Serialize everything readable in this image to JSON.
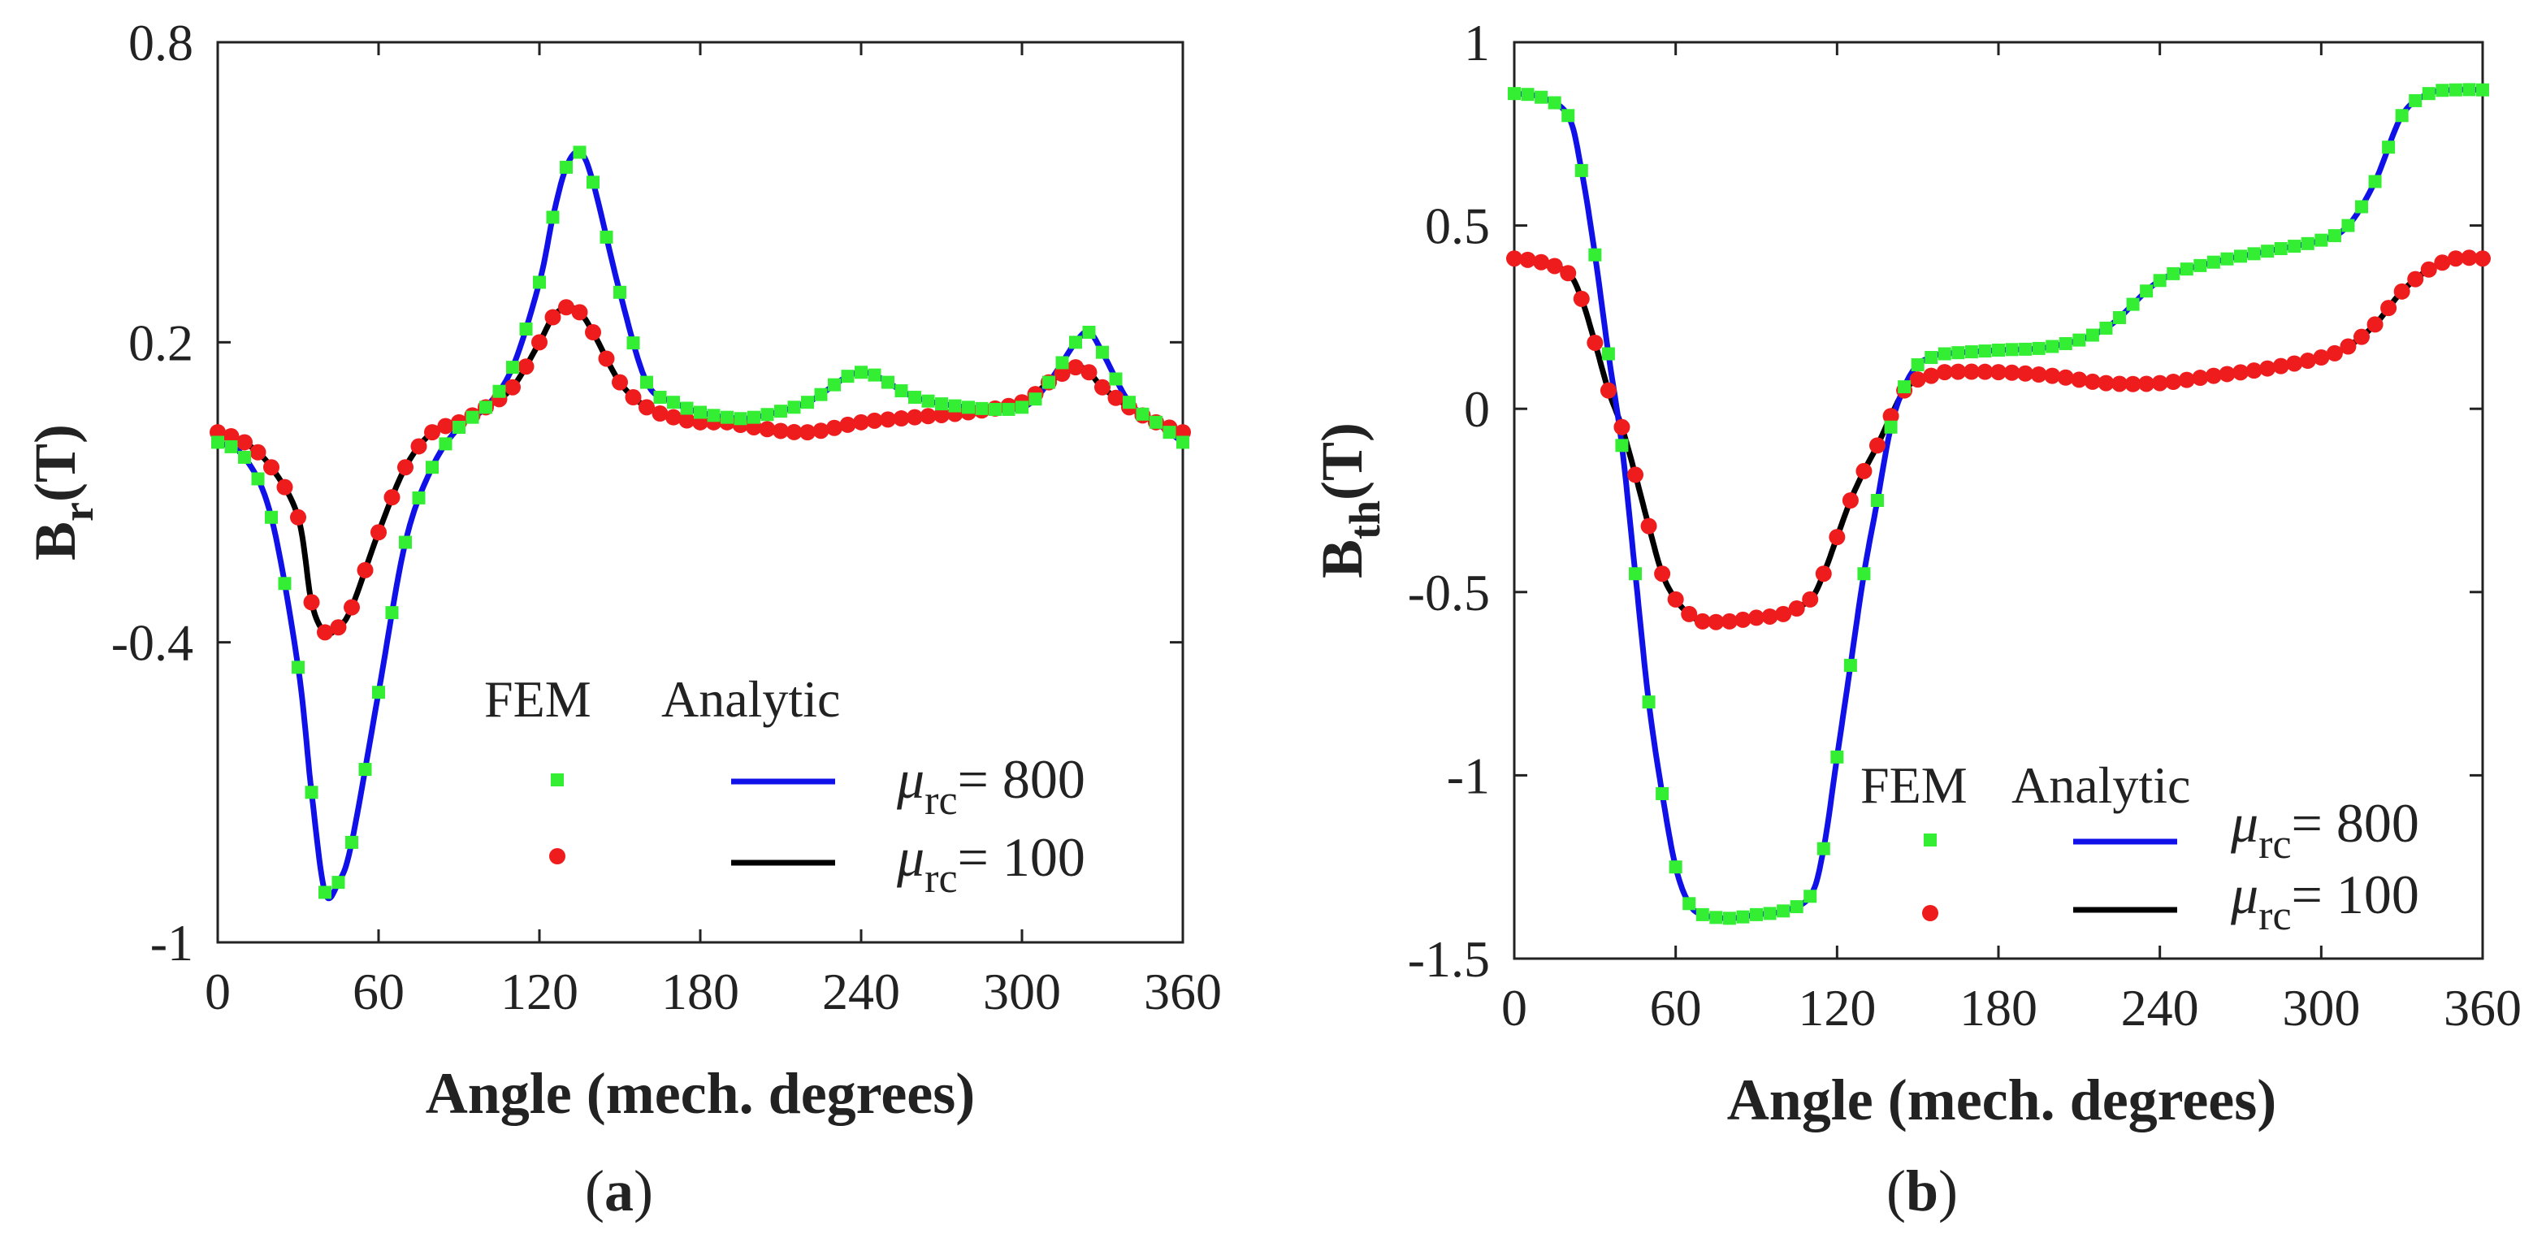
{
  "figure": {
    "fem_label": "FEM",
    "analytic_label": "Analytic",
    "mu_symbol": "μ",
    "mu_subscript": "rc",
    "colors": {
      "fem_800": "#33ee33",
      "fem_100": "#ee1c1c",
      "analytic_800": "#1010e8",
      "analytic_100": "#000000"
    }
  },
  "chart_data": [
    {
      "type": "line",
      "panel_label": "(a)",
      "ylabel_main": "B",
      "ylabel_sub": "r",
      "ylabel_unit": "(T)",
      "xlabel": "Angle (mech. degrees)",
      "xlim": [
        0,
        360
      ],
      "ylim": [
        -1,
        0.8
      ],
      "xticks": [
        0,
        60,
        120,
        180,
        240,
        300,
        360
      ],
      "xtick_labels": [
        "0",
        "60",
        "120",
        "180",
        "240",
        "300",
        "360"
      ],
      "yticks": [
        -1,
        -0.4,
        0.2,
        0.8
      ],
      "ytick_labels": [
        "-1",
        "-0.4",
        "0.2",
        "0.8"
      ],
      "series": [
        {
          "name": "μrc = 800",
          "legend_value": "= 800",
          "x": [
            0,
            10,
            20,
            30,
            35,
            40,
            45,
            50,
            60,
            70,
            80,
            90,
            100,
            110,
            120,
            125,
            130,
            135,
            140,
            150,
            160,
            170,
            180,
            190,
            200,
            220,
            240,
            260,
            280,
            300,
            310,
            320,
            325,
            330,
            340,
            350,
            360
          ],
          "y": [
            0,
            -0.03,
            -0.15,
            -0.45,
            -0.7,
            -0.9,
            -0.88,
            -0.8,
            -0.5,
            -0.2,
            -0.05,
            0.03,
            0.07,
            0.15,
            0.32,
            0.45,
            0.55,
            0.58,
            0.52,
            0.3,
            0.12,
            0.08,
            0.06,
            0.05,
            0.05,
            0.08,
            0.14,
            0.09,
            0.07,
            0.07,
            0.12,
            0.2,
            0.22,
            0.18,
            0.08,
            0.04,
            0.0
          ]
        },
        {
          "name": "μrc = 100",
          "legend_value": "= 100",
          "x": [
            0,
            10,
            20,
            30,
            35,
            40,
            45,
            50,
            60,
            70,
            80,
            90,
            100,
            110,
            120,
            125,
            130,
            135,
            140,
            150,
            160,
            170,
            180,
            190,
            200,
            220,
            240,
            260,
            280,
            300,
            310,
            320,
            325,
            330,
            340,
            350,
            360
          ],
          "y": [
            0.02,
            0.0,
            -0.05,
            -0.15,
            -0.32,
            -0.38,
            -0.37,
            -0.33,
            -0.18,
            -0.05,
            0.02,
            0.04,
            0.07,
            0.11,
            0.2,
            0.25,
            0.27,
            0.26,
            0.22,
            0.12,
            0.07,
            0.05,
            0.04,
            0.04,
            0.03,
            0.02,
            0.04,
            0.05,
            0.06,
            0.08,
            0.12,
            0.15,
            0.14,
            0.11,
            0.07,
            0.04,
            0.02
          ]
        }
      ]
    },
    {
      "type": "line",
      "panel_label": "(b)",
      "ylabel_main": "B",
      "ylabel_sub": "th",
      "ylabel_unit": "(T)",
      "xlabel": "Angle (mech. degrees)",
      "xlim": [
        0,
        360
      ],
      "ylim": [
        -1.5,
        1
      ],
      "xticks": [
        0,
        60,
        120,
        180,
        240,
        300,
        360
      ],
      "xtick_labels": [
        "0",
        "60",
        "120",
        "180",
        "240",
        "300",
        "360"
      ],
      "yticks": [
        -1.5,
        -1,
        -0.5,
        0,
        0.5,
        1
      ],
      "ytick_labels": [
        "-1.5",
        "-1",
        "-0.5",
        "0",
        "0.5",
        "1"
      ],
      "series": [
        {
          "name": "μrc = 800",
          "legend_value": "= 800",
          "x": [
            0,
            10,
            20,
            25,
            30,
            35,
            40,
            45,
            50,
            55,
            60,
            65,
            70,
            80,
            90,
            100,
            110,
            115,
            120,
            125,
            130,
            135,
            140,
            145,
            150,
            155,
            160,
            180,
            200,
            220,
            240,
            260,
            280,
            300,
            310,
            320,
            330,
            340,
            350,
            360
          ],
          "y": [
            0.86,
            0.85,
            0.8,
            0.65,
            0.42,
            0.15,
            -0.1,
            -0.45,
            -0.8,
            -1.05,
            -1.25,
            -1.35,
            -1.38,
            -1.39,
            -1.38,
            -1.37,
            -1.33,
            -1.2,
            -0.95,
            -0.7,
            -0.45,
            -0.25,
            -0.05,
            0.06,
            0.12,
            0.14,
            0.15,
            0.16,
            0.17,
            0.22,
            0.35,
            0.4,
            0.43,
            0.46,
            0.5,
            0.62,
            0.8,
            0.86,
            0.87,
            0.87
          ]
        },
        {
          "name": "μrc = 100",
          "legend_value": "= 100",
          "x": [
            0,
            10,
            20,
            25,
            30,
            35,
            40,
            45,
            50,
            55,
            60,
            65,
            70,
            80,
            90,
            100,
            110,
            115,
            120,
            125,
            130,
            135,
            140,
            145,
            150,
            155,
            160,
            180,
            200,
            220,
            240,
            260,
            280,
            300,
            310,
            320,
            330,
            340,
            350,
            360
          ],
          "y": [
            0.41,
            0.4,
            0.37,
            0.3,
            0.18,
            0.05,
            -0.05,
            -0.18,
            -0.32,
            -0.45,
            -0.52,
            -0.56,
            -0.58,
            -0.58,
            -0.57,
            -0.56,
            -0.52,
            -0.45,
            -0.35,
            -0.25,
            -0.17,
            -0.1,
            -0.02,
            0.05,
            0.08,
            0.09,
            0.1,
            0.1,
            0.09,
            0.07,
            0.07,
            0.09,
            0.11,
            0.14,
            0.17,
            0.23,
            0.32,
            0.38,
            0.41,
            0.41
          ]
        }
      ]
    }
  ]
}
